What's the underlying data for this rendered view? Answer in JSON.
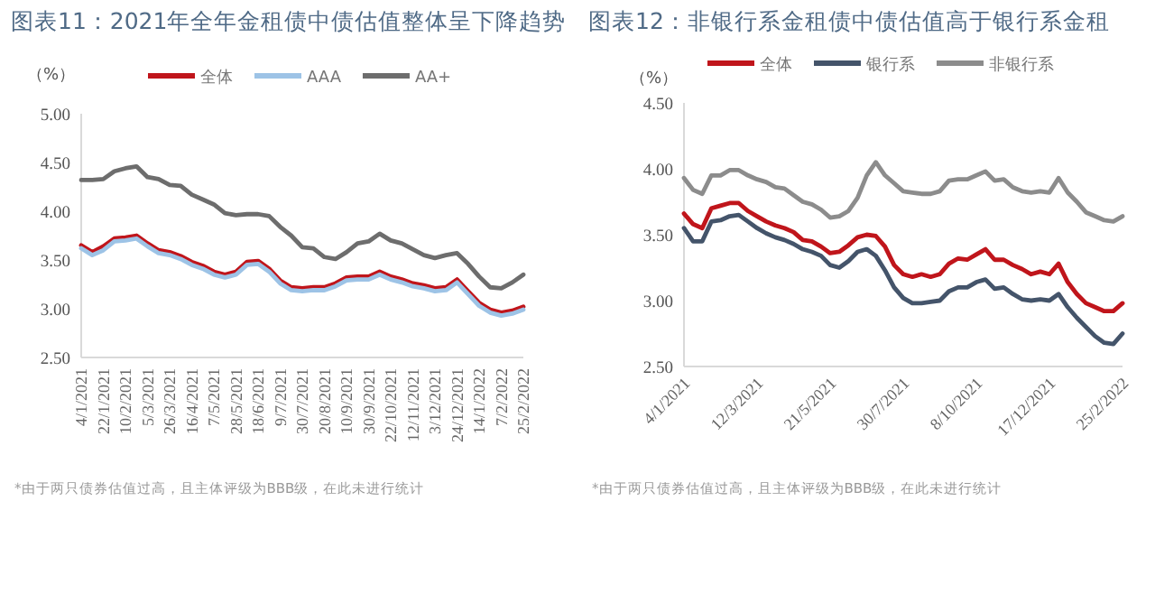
{
  "chart_data": [
    {
      "type": "line",
      "title": "图表11：2021年全年金租债中债估值整体呈下降趋势",
      "ylabel": "（%）",
      "legend": "top",
      "categories": [
        "4/1/2021",
        null,
        "22/1/2021",
        null,
        "10/2/2021",
        null,
        "5/3/2021",
        null,
        "26/3/2021",
        null,
        "16/4/2021",
        null,
        "7/5/2021",
        null,
        "28/5/2021",
        null,
        "18/6/2021",
        null,
        "9/7/2021",
        null,
        "30/7/2021",
        null,
        "20/8/2021",
        null,
        "10/9/2021",
        null,
        "30/9/2021",
        null,
        "22/10/2021",
        null,
        "12/11/2021",
        null,
        "3/12/2021",
        null,
        "24/12/2021",
        null,
        "14/1/2022",
        null,
        "7/2/2022",
        null,
        "25/2/2022"
      ],
      "series": [
        {
          "name": "全体",
          "color": "#c0151b",
          "values": [
            3.65,
            3.58,
            3.64,
            3.72,
            3.73,
            3.75,
            3.67,
            3.6,
            3.58,
            3.54,
            3.48,
            3.44,
            3.38,
            3.35,
            3.38,
            3.48,
            3.49,
            3.41,
            3.29,
            3.22,
            3.21,
            3.22,
            3.22,
            3.26,
            3.32,
            3.33,
            3.33,
            3.38,
            3.33,
            3.3,
            3.26,
            3.24,
            3.21,
            3.22,
            3.3,
            3.18,
            3.06,
            2.99,
            2.96,
            2.98,
            3.02
          ]
        },
        {
          "name": "AAA",
          "color": "#9dc3e6",
          "values": [
            3.62,
            3.55,
            3.6,
            3.69,
            3.7,
            3.72,
            3.64,
            3.57,
            3.55,
            3.51,
            3.45,
            3.41,
            3.35,
            3.32,
            3.35,
            3.45,
            3.46,
            3.38,
            3.26,
            3.19,
            3.18,
            3.19,
            3.19,
            3.23,
            3.29,
            3.3,
            3.3,
            3.35,
            3.3,
            3.27,
            3.23,
            3.21,
            3.18,
            3.19,
            3.27,
            3.15,
            3.03,
            2.96,
            2.93,
            2.95,
            2.99
          ]
        },
        {
          "name": "AA+",
          "color": "#6d6d6d",
          "values": [
            4.32,
            4.32,
            4.33,
            4.41,
            4.44,
            4.46,
            4.35,
            4.33,
            4.27,
            4.26,
            4.17,
            4.12,
            4.07,
            3.98,
            3.96,
            3.97,
            3.97,
            3.95,
            3.84,
            3.75,
            3.63,
            3.62,
            3.53,
            3.51,
            3.58,
            3.67,
            3.69,
            3.77,
            3.7,
            3.67,
            3.61,
            3.55,
            3.52,
            3.55,
            3.57,
            3.46,
            3.33,
            3.22,
            3.21,
            3.27,
            3.35
          ]
        }
      ],
      "ylim": [
        2.5,
        5.0
      ],
      "yticks": [
        {
          "value": 2.5,
          "label": "2.50"
        },
        {
          "value": 3.0,
          "label": "3.00"
        },
        {
          "value": 3.5,
          "label": "3.50"
        },
        {
          "value": 4.0,
          "label": "4.00"
        },
        {
          "value": 4.5,
          "label": "4.50"
        },
        {
          "value": 5.0,
          "label": "5.00"
        }
      ],
      "annotations": [
        "*由于两只债券估值过高，且主体评级为BBB级，在此未进行统计"
      ]
    },
    {
      "type": "line",
      "title": "图表12：非银行系金租债中债估值高于银行系金租",
      "ylabel": "（%）",
      "legend": "top",
      "categories": [
        "4/1/2021",
        null,
        null,
        null,
        null,
        null,
        null,
        null,
        "12/3/2021",
        null,
        null,
        null,
        null,
        null,
        null,
        null,
        "21/5/2021",
        null,
        null,
        null,
        null,
        null,
        null,
        null,
        "30/7/2021",
        null,
        null,
        null,
        null,
        null,
        null,
        null,
        "8/10/2021",
        null,
        null,
        null,
        null,
        null,
        null,
        null,
        "17/12/2021",
        null,
        null,
        null,
        null,
        null,
        null,
        null,
        "25/2/2022"
      ],
      "series": [
        {
          "name": "全体",
          "color": "#c0151b",
          "values": [
            3.66,
            3.58,
            3.55,
            3.7,
            3.72,
            3.74,
            3.74,
            3.68,
            3.64,
            3.6,
            3.57,
            3.55,
            3.52,
            3.46,
            3.45,
            3.41,
            3.36,
            3.37,
            3.42,
            3.48,
            3.5,
            3.49,
            3.41,
            3.27,
            3.2,
            3.18,
            3.2,
            3.18,
            3.2,
            3.28,
            3.32,
            3.31,
            3.35,
            3.39,
            3.31,
            3.31,
            3.27,
            3.24,
            3.2,
            3.22,
            3.2,
            3.28,
            3.14,
            3.05,
            2.98,
            2.95,
            2.92,
            2.92,
            2.98
          ]
        },
        {
          "name": "银行系",
          "color": "#44546a",
          "values": [
            3.55,
            3.45,
            3.45,
            3.6,
            3.61,
            3.64,
            3.65,
            3.6,
            3.55,
            3.51,
            3.48,
            3.46,
            3.43,
            3.39,
            3.37,
            3.34,
            3.27,
            3.25,
            3.3,
            3.37,
            3.39,
            3.34,
            3.23,
            3.1,
            3.02,
            2.98,
            2.98,
            2.99,
            3.0,
            3.07,
            3.1,
            3.1,
            3.14,
            3.16,
            3.09,
            3.1,
            3.05,
            3.01,
            3.0,
            3.01,
            3.0,
            3.05,
            2.95,
            2.87,
            2.8,
            2.73,
            2.68,
            2.67,
            2.75
          ]
        },
        {
          "name": "非银行系",
          "color": "#8c8c8c",
          "values": [
            3.93,
            3.84,
            3.81,
            3.95,
            3.95,
            3.99,
            3.99,
            3.95,
            3.92,
            3.9,
            3.86,
            3.85,
            3.8,
            3.75,
            3.73,
            3.69,
            3.63,
            3.64,
            3.68,
            3.78,
            3.95,
            4.05,
            3.95,
            3.89,
            3.83,
            3.82,
            3.81,
            3.81,
            3.83,
            3.91,
            3.92,
            3.92,
            3.95,
            3.98,
            3.91,
            3.92,
            3.86,
            3.83,
            3.82,
            3.83,
            3.82,
            3.93,
            3.82,
            3.75,
            3.67,
            3.64,
            3.61,
            3.6,
            3.64
          ]
        }
      ],
      "ylim": [
        2.5,
        4.5
      ],
      "yticks": [
        {
          "value": 2.5,
          "label": "2.50"
        },
        {
          "value": 3.0,
          "label": "3.00"
        },
        {
          "value": 3.5,
          "label": "3.50"
        },
        {
          "value": 4.0,
          "label": "4.00"
        },
        {
          "value": 4.5,
          "label": "4.50"
        }
      ],
      "annotations": [
        "*由于两只债券估值过高，且主体评级为BBB级，在此未进行统计"
      ]
    }
  ]
}
